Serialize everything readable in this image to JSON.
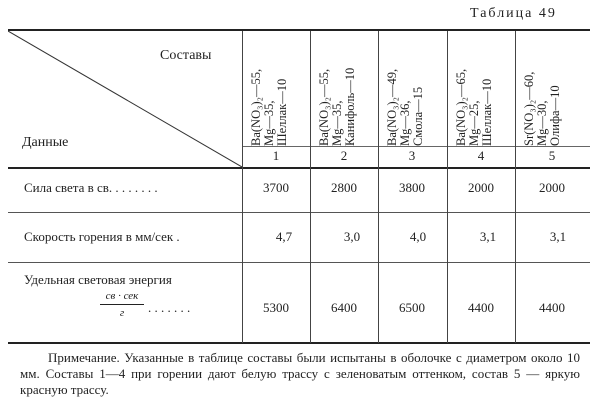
{
  "title": "Таблица 49",
  "header": {
    "compositions_label": "Составы",
    "data_label": "Данные"
  },
  "columns": [
    {
      "number": "1",
      "composition": "Ba(NO₃)₂—55,\nMg—35,\nШеллак—10"
    },
    {
      "number": "2",
      "composition": "Ba(NO₃)₂—55,\nMg—35,\nКанифоль—10"
    },
    {
      "number": "3",
      "composition": "Ba(NO₃)₂—49,\nMg—36,\nСмола—15"
    },
    {
      "number": "4",
      "composition": "Ba(NO₃)₂—65,\nMg—25,\nШеллак—10"
    },
    {
      "number": "5",
      "composition": "Sr(NO₃)₂—60,\nMg—30,\nОлифа—10"
    }
  ],
  "rows": [
    {
      "label": "Сила света в св. . . . . . . .",
      "values": [
        "3700",
        "2800",
        "3800",
        "2000",
        "2000"
      ]
    },
    {
      "label": "Скорость горения в мм/сек .",
      "values": [
        "4,7",
        "3,0",
        "4,0",
        "3,1",
        "3,1"
      ]
    },
    {
      "label": "Удельная световая энергия",
      "unit_numerator": "св · сек",
      "unit_denominator": "г",
      "dots": ". . . . . . .",
      "values": [
        "5300",
        "6400",
        "6500",
        "4400",
        "4400"
      ]
    }
  ],
  "note": "Примечание. Указанные в таблице составы были испытаны в оболочке с диаметром около 10 мм. Составы 1—4 при горении дают белую трассу с зеленоватым оттенком, состав 5 — яркую красную трассу."
}
